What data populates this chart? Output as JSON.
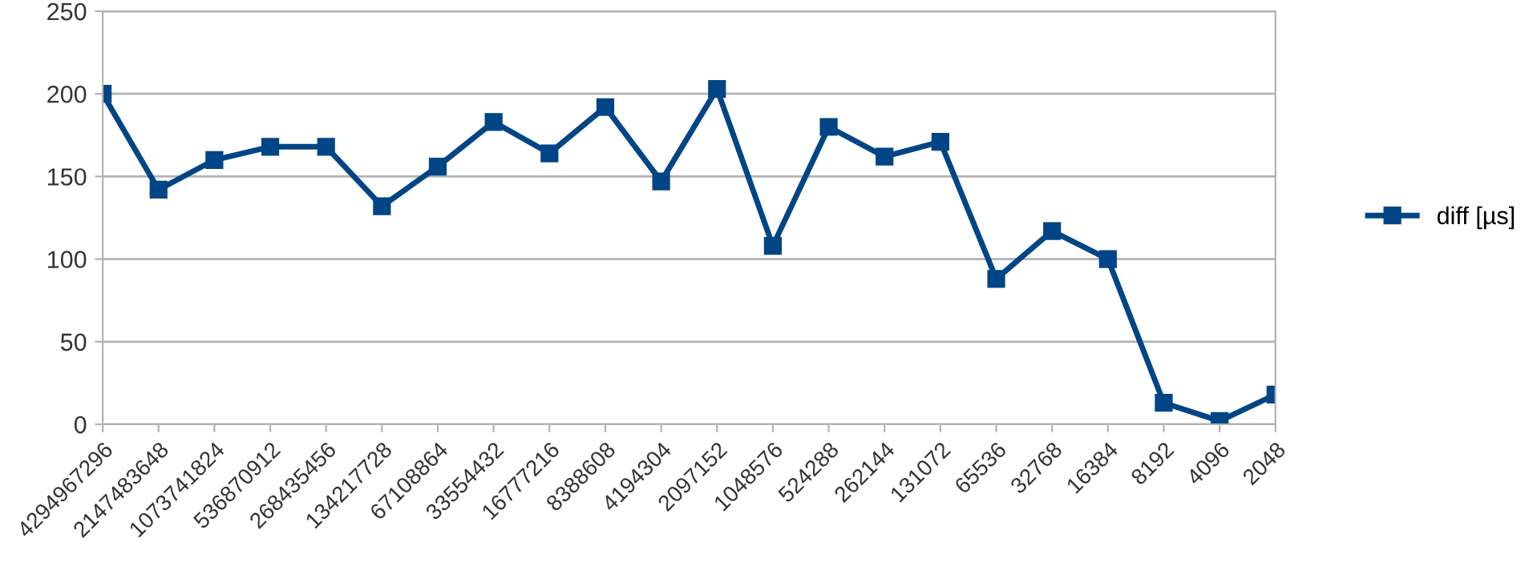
{
  "chart_data": {
    "type": "line",
    "categories": [
      "4294967296",
      "2147483648",
      "1073741824",
      "536870912",
      "268435456",
      "134217728",
      "67108864",
      "33554432",
      "16777216",
      "8388608",
      "4194304",
      "2097152",
      "1048576",
      "524288",
      "262144",
      "131072",
      "65536",
      "32768",
      "16384",
      "8192",
      "4096",
      "2048"
    ],
    "series": [
      {
        "name": "diff [µs]",
        "color": "#004586",
        "values": [
          200,
          142,
          160,
          168,
          168,
          132,
          156,
          183,
          164,
          192,
          147,
          203,
          108,
          180,
          162,
          171,
          88,
          117,
          100,
          13,
          2,
          18
        ]
      }
    ],
    "ylim": [
      0,
      250
    ],
    "yticks": [
      0,
      50,
      100,
      150,
      200,
      250
    ],
    "grid": "y",
    "legend": "right",
    "marker": "square",
    "line_style": "solid"
  }
}
